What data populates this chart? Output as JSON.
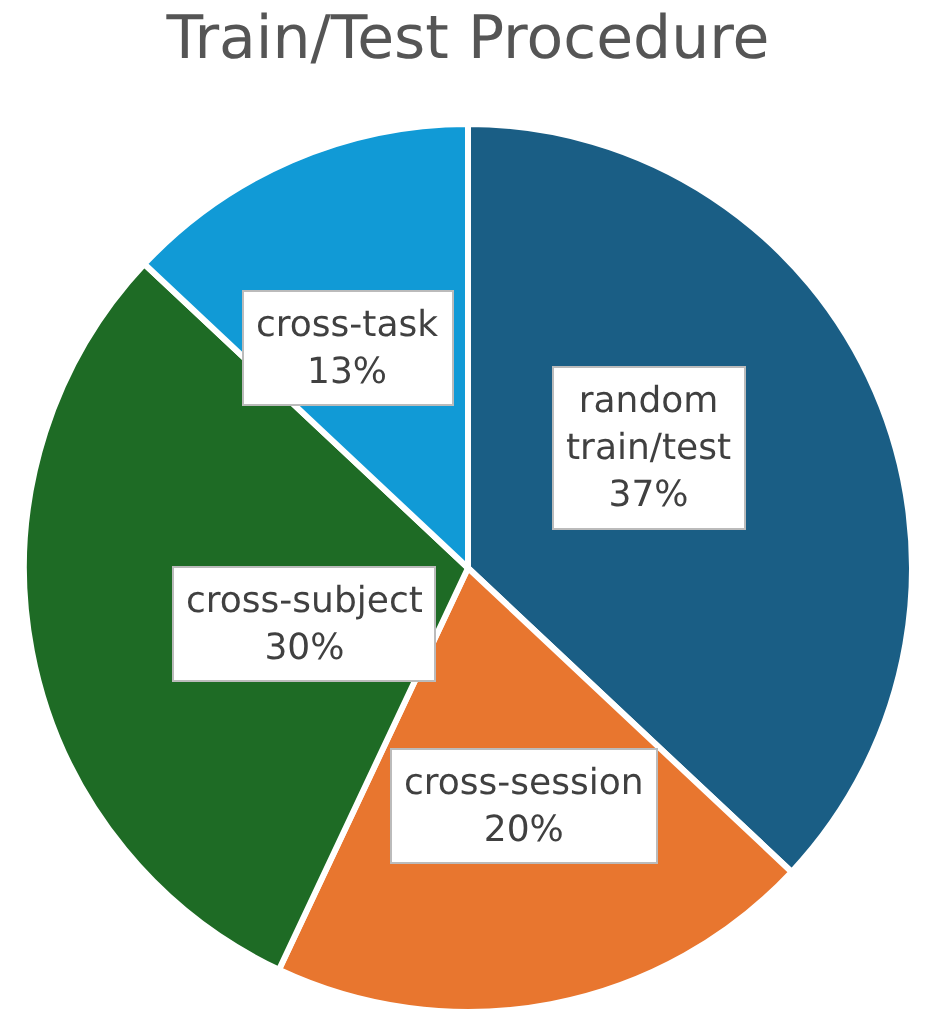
{
  "chart_data": {
    "type": "pie",
    "title": "Train/Test Procedure",
    "categories": [
      "random train/test",
      "cross-session",
      "cross-subject",
      "cross-task"
    ],
    "values": [
      37,
      20,
      30,
      13
    ],
    "value_labels": [
      "37%",
      "20%",
      "30%",
      "13%"
    ],
    "colors": [
      "#1a5e85",
      "#e8762f",
      "#1e6b25",
      "#119ad6"
    ],
    "legend": false
  }
}
